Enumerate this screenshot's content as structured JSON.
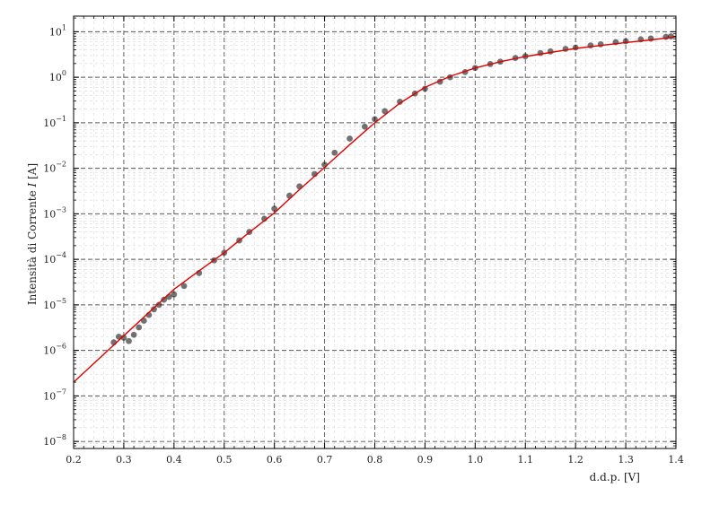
{
  "chart_data": {
    "type": "scatter",
    "title": "",
    "xlabel": "d.d.p. [V]",
    "ylabel_prefix": "Intensità di Corrente ",
    "ylabel_symbol": "I",
    "ylabel_suffix": " [A]",
    "xlim": [
      0.2,
      1.4
    ],
    "ylim": [
      7e-09,
      22
    ],
    "yscale": "log",
    "grid": true,
    "legend": "none",
    "x_ticks": [
      "0.2",
      "0.3",
      "0.4",
      "0.5",
      "0.6",
      "0.7",
      "0.8",
      "0.9",
      "1.0",
      "1.1",
      "1.2",
      "1.3",
      "1.4"
    ],
    "y_tick_exponents": [
      "-8",
      "-7",
      "-6",
      "-5",
      "-4",
      "-3",
      "-2",
      "-1",
      "0",
      "1"
    ],
    "colors": {
      "data": "#000000",
      "fit": "#e00000",
      "grid": "#555555",
      "minor_grid": "#d0d0d0"
    },
    "series": [
      {
        "kind": "scatter",
        "x": [
          0.28,
          0.29,
          0.3,
          0.31,
          0.32,
          0.33,
          0.34,
          0.35,
          0.36,
          0.37,
          0.38,
          0.39,
          0.4,
          0.42,
          0.45,
          0.48,
          0.5,
          0.53,
          0.55,
          0.58,
          0.6,
          0.63,
          0.65,
          0.68,
          0.7,
          0.72,
          0.75,
          0.78,
          0.8,
          0.82,
          0.85,
          0.88,
          0.9,
          0.93,
          0.95,
          0.98,
          1.0,
          1.03,
          1.05,
          1.08,
          1.1,
          1.13,
          1.15,
          1.18,
          1.2,
          1.23,
          1.25,
          1.28,
          1.3,
          1.33,
          1.35,
          1.38,
          1.39
        ],
        "y": [
          1.5e-06,
          2e-06,
          1.9e-06,
          1.6e-06,
          2.2e-06,
          3.2e-06,
          4.5e-06,
          6e-06,
          8e-06,
          1e-05,
          1.3e-05,
          1.5e-05,
          1.7e-05,
          2.6e-05,
          5e-05,
          9.5e-05,
          0.00014,
          0.00026,
          0.0004,
          0.00078,
          0.0013,
          0.0025,
          0.004,
          0.0075,
          0.012,
          0.022,
          0.045,
          0.082,
          0.12,
          0.18,
          0.29,
          0.44,
          0.56,
          0.8,
          1.0,
          1.3,
          1.6,
          1.95,
          2.2,
          2.65,
          2.9,
          3.4,
          3.7,
          4.2,
          4.5,
          5.0,
          5.3,
          5.9,
          6.2,
          6.8,
          7.1,
          7.7,
          7.9
        ]
      },
      {
        "kind": "line",
        "x": [
          0.2,
          0.25,
          0.3,
          0.35,
          0.4,
          0.45,
          0.5,
          0.55,
          0.6,
          0.65,
          0.7,
          0.75,
          0.8,
          0.85,
          0.9,
          0.95,
          1.0,
          1.05,
          1.1,
          1.15,
          1.2,
          1.25,
          1.3,
          1.35,
          1.4
        ],
        "y": [
          2e-07,
          6.5e-07,
          2.1e-06,
          6.8e-06,
          2.2e-05,
          5.6e-05,
          0.00014,
          0.00039,
          0.00105,
          0.0034,
          0.0105,
          0.033,
          0.1,
          0.27,
          0.6,
          1.05,
          1.6,
          2.2,
          2.85,
          3.5,
          4.3,
          5.0,
          5.8,
          6.6,
          7.7
        ]
      }
    ]
  }
}
